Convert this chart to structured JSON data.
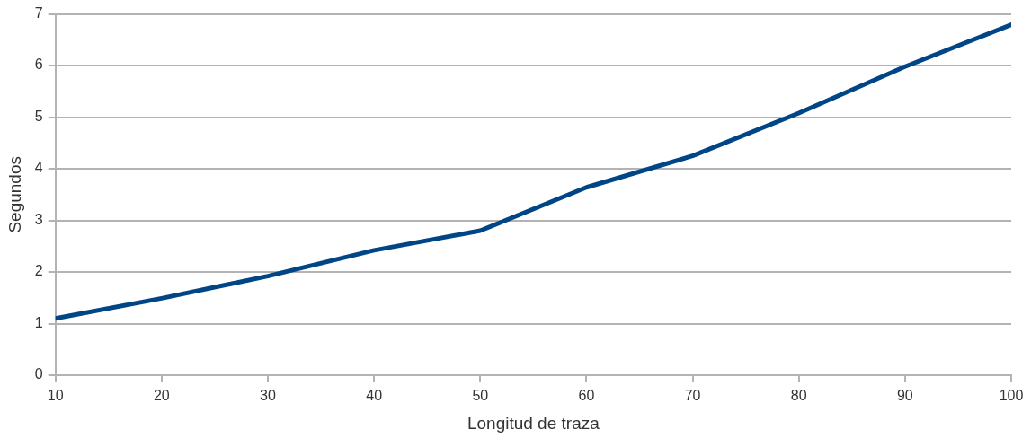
{
  "chart_data": {
    "type": "line",
    "xlabel": "Longitud de traza",
    "ylabel": "Segundos",
    "x": [
      10,
      20,
      30,
      40,
      50,
      60,
      70,
      80,
      90,
      100
    ],
    "series": [
      {
        "color": "#004586",
        "values": [
          1.1,
          1.49,
          1.92,
          2.42,
          2.8,
          3.64,
          4.25,
          5.08,
          5.98,
          6.79
        ]
      }
    ],
    "xlim": [
      10,
      100
    ],
    "xticks": [
      10,
      20,
      30,
      40,
      50,
      60,
      70,
      80,
      90,
      100
    ],
    "ylim": [
      0,
      7
    ],
    "yticks": [
      0,
      1,
      2,
      3,
      4,
      5,
      6,
      7
    ],
    "grid": "y",
    "legend": false,
    "marker": "none",
    "line_style": "solid"
  }
}
